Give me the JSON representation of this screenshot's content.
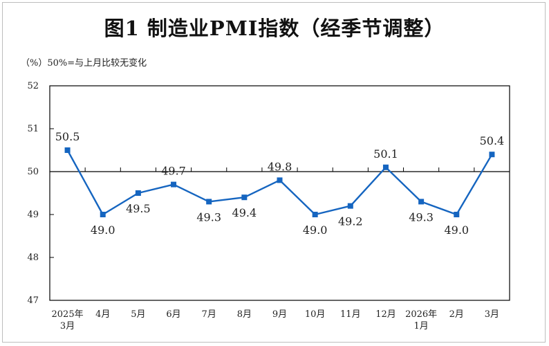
{
  "title": "图1  制造业PMI指数（经季节调整）",
  "unit_note": "（%）50%=与上月比较无变化",
  "colors": {
    "series": "#1565c0",
    "axis": "#000000"
  },
  "chart_data": {
    "type": "line",
    "categories": [
      [
        "2025年",
        "3月"
      ],
      [
        "4月"
      ],
      [
        "5月"
      ],
      [
        "6月"
      ],
      [
        "7月"
      ],
      [
        "8月"
      ],
      [
        "9月"
      ],
      [
        "10月"
      ],
      [
        "11月"
      ],
      [
        "12月"
      ],
      [
        "2026年",
        "1月"
      ],
      [
        "2月"
      ],
      [
        "3月"
      ]
    ],
    "values": [
      50.5,
      49.0,
      49.5,
      49.7,
      49.3,
      49.4,
      49.8,
      49.0,
      49.2,
      50.1,
      49.3,
      49.0,
      50.4
    ],
    "data_labels": [
      "50.5",
      "49.0",
      "49.5",
      "49.7",
      "49.3",
      "49.4",
      "49.8",
      "49.0",
      "49.2",
      "50.1",
      "49.3",
      "49.0",
      "50.4"
    ],
    "yticks": [
      "47",
      "48",
      "49",
      "50",
      "51",
      "52"
    ],
    "ylim": [
      47,
      52
    ],
    "reference_line": 50,
    "marker": "square"
  }
}
